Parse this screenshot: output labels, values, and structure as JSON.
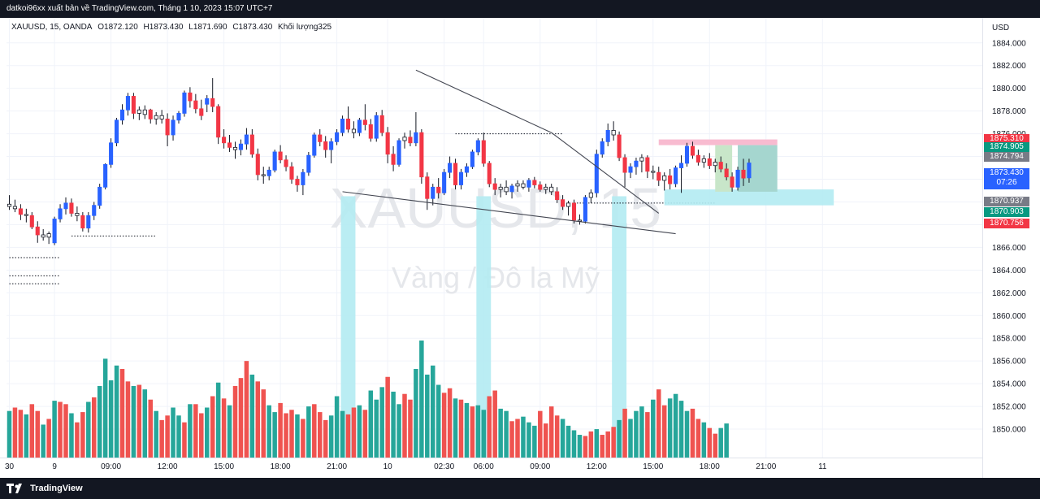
{
  "header": {
    "publisher_line": "datkoi96xx xuất bản về TradingView.com, Tháng 1 10, 2023 15:07 UTC+7"
  },
  "legend": {
    "symbol": "XAUUSD, 15, OANDA",
    "open": "O1872.120",
    "high": "H1873.430",
    "low": "L1871.690",
    "close": "C1873.430",
    "volume": "Khối lượng325"
  },
  "watermark": {
    "symbol": "XAUUSD, 15",
    "name": "Vàng / Đô la Mỹ"
  },
  "footer": {
    "brand": "TradingView"
  },
  "price_badges": [
    {
      "label": "1875.310",
      "color": "#f23645"
    },
    {
      "label": "1874.905",
      "color": "#089981"
    },
    {
      "label": "1874.794",
      "color": "#787b86"
    },
    {
      "label": "1873.430",
      "sub": "07:26",
      "color": "#2962ff"
    },
    {
      "label": "1870.937",
      "color": "#787b86"
    },
    {
      "label": "1870.903",
      "color": "#089981"
    },
    {
      "label": "1870.756",
      "color": "#f23645"
    }
  ],
  "chart_data": {
    "type": "candlestick",
    "currency": "USD",
    "y_ticks": [
      {
        "value": 1884,
        "label": "1884.000"
      },
      {
        "value": 1882,
        "label": "1882.000"
      },
      {
        "value": 1880,
        "label": "1880.000"
      },
      {
        "value": 1878,
        "label": "1878.000"
      },
      {
        "value": 1876,
        "label": "1876.000"
      },
      {
        "value": 1874,
        "label": "1874.000"
      },
      {
        "value": 1872,
        "label": "1872.000"
      },
      {
        "value": 1870,
        "label": "1870.000"
      },
      {
        "value": 1868,
        "label": "1868.000"
      },
      {
        "value": 1866,
        "label": "1866.000"
      },
      {
        "value": 1864,
        "label": "1864.000"
      },
      {
        "value": 1862,
        "label": "1862.000"
      },
      {
        "value": 1860,
        "label": "1860.000"
      },
      {
        "value": 1858,
        "label": "1858.000"
      },
      {
        "value": 1856,
        "label": "1856.000"
      },
      {
        "value": 1854,
        "label": "1854.000"
      },
      {
        "value": 1852,
        "label": "1852.000"
      },
      {
        "value": 1850,
        "label": "1850.000"
      }
    ],
    "ylim": [
      1847.5,
      1886.2
    ],
    "x_ticks": [
      {
        "bar": 0,
        "label": "30"
      },
      {
        "bar": 8,
        "label": "9"
      },
      {
        "bar": 18,
        "label": "09:00"
      },
      {
        "bar": 28,
        "label": "12:00"
      },
      {
        "bar": 38,
        "label": "15:00"
      },
      {
        "bar": 48,
        "label": "18:00"
      },
      {
        "bar": 58,
        "label": "21:00"
      },
      {
        "bar": 67,
        "label": "10"
      },
      {
        "bar": 77,
        "label": "02:30"
      },
      {
        "bar": 84,
        "label": "06:00"
      },
      {
        "bar": 94,
        "label": "09:00"
      },
      {
        "bar": 104,
        "label": "12:00"
      },
      {
        "bar": 114,
        "label": "15:00"
      },
      {
        "bar": 124,
        "label": "18:00"
      },
      {
        "bar": 134,
        "label": "21:00"
      },
      {
        "bar": 144,
        "label": "11"
      }
    ],
    "colors": {
      "up": "#2962ff",
      "down": "#f23645",
      "neutral": "#131722",
      "vol_up": "#26a69a",
      "vol_down": "#ef5350"
    },
    "candles": [
      [
        1869.8,
        1870.6,
        1869.3,
        1869.6
      ],
      [
        1869.6,
        1870.2,
        1869.1,
        1869.4
      ],
      [
        1869.4,
        1869.8,
        1868.4,
        1868.9
      ],
      [
        1868.9,
        1869.4,
        1868.2,
        1868.8
      ],
      [
        1868.8,
        1869.1,
        1867.6,
        1867.8
      ],
      [
        1867.8,
        1868.3,
        1866.4,
        1867.1
      ],
      [
        1867.1,
        1867.6,
        1866.6,
        1866.9
      ],
      [
        1866.9,
        1867.4,
        1866.3,
        1867.2
      ],
      [
        1866.4,
        1868.7,
        1866.2,
        1868.5
      ],
      [
        1868.5,
        1869.8,
        1868.2,
        1869.4
      ],
      [
        1869.4,
        1870.4,
        1868.9,
        1869.9
      ],
      [
        1869.9,
        1870.3,
        1868.7,
        1869.0
      ],
      [
        1869.0,
        1869.6,
        1868.3,
        1868.8
      ],
      [
        1868.8,
        1869.1,
        1867.4,
        1867.7
      ],
      [
        1867.7,
        1869.1,
        1867.3,
        1868.8
      ],
      [
        1868.8,
        1870.0,
        1868.4,
        1869.7
      ],
      [
        1869.7,
        1871.6,
        1869.4,
        1871.3
      ],
      [
        1871.3,
        1873.4,
        1871.1,
        1873.3
      ],
      [
        1873.3,
        1875.6,
        1873.0,
        1875.2
      ],
      [
        1875.2,
        1877.4,
        1874.9,
        1877.2
      ],
      [
        1877.2,
        1878.6,
        1876.8,
        1878.1
      ],
      [
        1878.1,
        1879.6,
        1877.6,
        1879.3
      ],
      [
        1879.3,
        1879.6,
        1877.3,
        1877.8
      ],
      [
        1877.8,
        1878.4,
        1877.2,
        1878.1
      ],
      [
        1878.1,
        1878.5,
        1877.3,
        1877.7
      ],
      [
        1878.1,
        1878.2,
        1876.9,
        1877.3
      ],
      [
        1877.3,
        1877.9,
        1876.8,
        1877.6
      ],
      [
        1877.6,
        1878.1,
        1876.9,
        1877.3
      ],
      [
        1877.3,
        1877.8,
        1874.9,
        1875.9
      ],
      [
        1875.9,
        1877.6,
        1875.4,
        1877.2
      ],
      [
        1877.2,
        1878.0,
        1876.9,
        1877.8
      ],
      [
        1877.8,
        1879.8,
        1877.5,
        1879.6
      ],
      [
        1879.6,
        1880.1,
        1878.3,
        1878.9
      ],
      [
        1878.9,
        1879.5,
        1877.8,
        1878.2
      ],
      [
        1878.2,
        1879.0,
        1877.2,
        1877.6
      ],
      [
        1878.6,
        1879.4,
        1877.9,
        1879.1
      ],
      [
        1879.1,
        1880.9,
        1877.9,
        1878.4
      ],
      [
        1878.4,
        1878.6,
        1875.1,
        1875.7
      ],
      [
        1875.7,
        1876.4,
        1874.7,
        1875.2
      ],
      [
        1875.2,
        1875.9,
        1874.4,
        1874.8
      ],
      [
        1874.8,
        1875.3,
        1873.8,
        1874.6
      ],
      [
        1874.6,
        1875.5,
        1874.1,
        1875.1
      ],
      [
        1875.1,
        1876.5,
        1874.6,
        1875.9
      ],
      [
        1875.9,
        1876.4,
        1873.9,
        1874.2
      ],
      [
        1874.2,
        1874.7,
        1871.9,
        1872.4
      ],
      [
        1872.4,
        1873.1,
        1871.6,
        1872.3
      ],
      [
        1872.3,
        1873.1,
        1871.9,
        1872.8
      ],
      [
        1872.8,
        1874.6,
        1872.6,
        1874.4
      ],
      [
        1874.4,
        1875.0,
        1873.4,
        1873.7
      ],
      [
        1873.7,
        1874.1,
        1872.7,
        1873.1
      ],
      [
        1873.1,
        1873.5,
        1871.6,
        1872.0
      ],
      [
        1872.0,
        1872.3,
        1870.9,
        1871.5
      ],
      [
        1871.5,
        1872.9,
        1870.6,
        1872.6
      ],
      [
        1872.6,
        1874.4,
        1872.3,
        1874.1
      ],
      [
        1874.1,
        1876.1,
        1873.9,
        1875.9
      ],
      [
        1875.9,
        1876.4,
        1874.9,
        1875.3
      ],
      [
        1875.3,
        1875.8,
        1873.9,
        1874.6
      ],
      [
        1874.6,
        1875.6,
        1873.4,
        1875.3
      ],
      [
        1875.3,
        1876.4,
        1875.0,
        1876.1
      ],
      [
        1876.1,
        1877.6,
        1875.8,
        1877.3
      ],
      [
        1877.3,
        1878.4,
        1876.1,
        1876.4
      ],
      [
        1876.4,
        1877.1,
        1875.6,
        1876.1
      ],
      [
        1876.1,
        1877.4,
        1875.8,
        1877.2
      ],
      [
        1877.2,
        1878.6,
        1876.3,
        1876.8
      ],
      [
        1876.8,
        1877.3,
        1875.3,
        1875.6
      ],
      [
        1875.6,
        1877.9,
        1875.3,
        1877.6
      ],
      [
        1877.6,
        1878.1,
        1875.8,
        1876.1
      ],
      [
        1876.1,
        1876.6,
        1873.4,
        1874.2
      ],
      [
        1874.2,
        1874.9,
        1872.7,
        1873.3
      ],
      [
        1873.3,
        1875.6,
        1873.1,
        1875.4
      ],
      [
        1875.4,
        1876.1,
        1874.7,
        1875.7
      ],
      [
        1875.7,
        1876.3,
        1874.9,
        1875.2
      ],
      [
        1875.2,
        1877.9,
        1874.9,
        1876.1
      ],
      [
        1876.1,
        1876.4,
        1871.6,
        1872.2
      ],
      [
        1872.2,
        1872.6,
        1869.3,
        1870.3
      ],
      [
        1870.3,
        1871.6,
        1869.7,
        1871.3
      ],
      [
        1871.3,
        1872.1,
        1870.3,
        1870.8
      ],
      [
        1870.8,
        1872.9,
        1870.6,
        1872.6
      ],
      [
        1872.6,
        1874.0,
        1872.1,
        1873.4
      ],
      [
        1873.4,
        1873.8,
        1871.1,
        1871.5
      ],
      [
        1871.5,
        1872.9,
        1871.1,
        1872.6
      ],
      [
        1872.6,
        1873.4,
        1872.2,
        1873.1
      ],
      [
        1873.1,
        1874.6,
        1872.9,
        1874.4
      ],
      [
        1874.4,
        1875.6,
        1874.1,
        1875.4
      ],
      [
        1875.4,
        1876.1,
        1873.1,
        1873.4
      ],
      [
        1873.4,
        1873.6,
        1871.3,
        1871.6
      ],
      [
        1871.6,
        1872.1,
        1870.6,
        1871.1
      ],
      [
        1871.1,
        1871.6,
        1870.4,
        1871.3
      ],
      [
        1871.3,
        1871.9,
        1870.6,
        1870.9
      ],
      [
        1870.9,
        1871.6,
        1870.3,
        1871.4
      ],
      [
        1871.4,
        1871.9,
        1870.9,
        1871.6
      ],
      [
        1871.6,
        1871.9,
        1871.1,
        1871.3
      ],
      [
        1871.3,
        1872.1,
        1870.9,
        1871.9
      ],
      [
        1871.9,
        1872.2,
        1871.2,
        1871.5
      ],
      [
        1871.5,
        1871.8,
        1870.9,
        1871.1
      ],
      [
        1871.1,
        1871.6,
        1870.7,
        1871.3
      ],
      [
        1871.3,
        1871.6,
        1870.6,
        1870.9
      ],
      [
        1870.9,
        1871.3,
        1869.9,
        1870.2
      ],
      [
        1870.2,
        1870.6,
        1869.3,
        1869.6
      ],
      [
        1869.6,
        1870.1,
        1868.8,
        1869.9
      ],
      [
        1869.9,
        1870.2,
        1868.1,
        1868.4
      ],
      [
        1868.4,
        1868.9,
        1868.0,
        1868.3
      ],
      [
        1868.3,
        1870.6,
        1868.1,
        1870.4
      ],
      [
        1870.4,
        1871.1,
        1869.9,
        1870.8
      ],
      [
        1870.8,
        1874.6,
        1870.4,
        1874.2
      ],
      [
        1874.2,
        1875.6,
        1873.9,
        1875.3
      ],
      [
        1875.3,
        1876.9,
        1874.9,
        1876.3
      ],
      [
        1876.3,
        1877.1,
        1875.4,
        1875.9
      ],
      [
        1875.9,
        1876.2,
        1873.6,
        1873.9
      ],
      [
        1873.9,
        1874.2,
        1871.3,
        1872.6
      ],
      [
        1872.6,
        1873.4,
        1872.1,
        1873.1
      ],
      [
        1873.1,
        1873.9,
        1872.4,
        1873.6
      ],
      [
        1873.6,
        1874.2,
        1872.6,
        1873.9
      ],
      [
        1873.9,
        1874.1,
        1872.1,
        1872.7
      ],
      [
        1872.7,
        1873.2,
        1872.0,
        1872.6
      ],
      [
        1872.6,
        1873.1,
        1871.4,
        1871.9
      ],
      [
        1871.9,
        1872.6,
        1871.0,
        1872.3
      ],
      [
        1872.3,
        1872.9,
        1871.1,
        1871.6
      ],
      [
        1871.6,
        1873.2,
        1871.3,
        1873.0
      ],
      [
        1873.0,
        1874.1,
        1870.8,
        1873.4
      ],
      [
        1873.4,
        1875.2,
        1873.1,
        1874.9
      ],
      [
        1874.9,
        1875.3,
        1873.8,
        1874.1
      ],
      [
        1874.1,
        1874.6,
        1873.2,
        1873.5
      ],
      [
        1873.5,
        1874.1,
        1873.0,
        1873.8
      ],
      [
        1873.8,
        1874.3,
        1872.9,
        1873.2
      ],
      [
        1873.2,
        1873.8,
        1872.6,
        1873.5
      ],
      [
        1873.5,
        1874.0,
        1872.6,
        1872.9
      ],
      [
        1872.9,
        1873.4,
        1871.9,
        1872.2
      ],
      [
        1872.2,
        1872.6,
        1870.9,
        1871.3
      ],
      [
        1871.3,
        1873.1,
        1871.0,
        1872.8
      ],
      [
        1872.8,
        1873.8,
        1871.4,
        1872.1
      ],
      [
        1872.12,
        1873.8,
        1871.69,
        1873.43
      ]
    ],
    "volumes": [
      [
        1851.6,
        1
      ],
      [
        1851.9,
        0
      ],
      [
        1851.7,
        0
      ],
      [
        1851.3,
        1
      ],
      [
        1852.2,
        0
      ],
      [
        1851.6,
        0
      ],
      [
        1850.4,
        1
      ],
      [
        1850.9,
        0
      ],
      [
        1852.5,
        1
      ],
      [
        1852.4,
        0
      ],
      [
        1852.2,
        0
      ],
      [
        1851.4,
        1
      ],
      [
        1850.6,
        0
      ],
      [
        1851.5,
        0
      ],
      [
        1852.4,
        1
      ],
      [
        1852.8,
        0
      ],
      [
        1853.8,
        1
      ],
      [
        1856.2,
        1
      ],
      [
        1854.3,
        1
      ],
      [
        1855.6,
        1
      ],
      [
        1855.3,
        0
      ],
      [
        1854.2,
        0
      ],
      [
        1853.8,
        1
      ],
      [
        1853.9,
        0
      ],
      [
        1853.5,
        1
      ],
      [
        1852.6,
        0
      ],
      [
        1851.6,
        1
      ],
      [
        1850.8,
        0
      ],
      [
        1851.2,
        0
      ],
      [
        1851.9,
        1
      ],
      [
        1851.2,
        1
      ],
      [
        1850.6,
        0
      ],
      [
        1852.2,
        1
      ],
      [
        1852.2,
        0
      ],
      [
        1851.4,
        0
      ],
      [
        1851.9,
        1
      ],
      [
        1852.9,
        0
      ],
      [
        1854.1,
        1
      ],
      [
        1852.7,
        0
      ],
      [
        1852.1,
        1
      ],
      [
        1853.8,
        0
      ],
      [
        1854.5,
        0
      ],
      [
        1856.0,
        0
      ],
      [
        1854.8,
        1
      ],
      [
        1854.2,
        0
      ],
      [
        1853.5,
        0
      ],
      [
        1852.1,
        1
      ],
      [
        1851.5,
        1
      ],
      [
        1852.3,
        0
      ],
      [
        1851.4,
        0
      ],
      [
        1851.7,
        0
      ],
      [
        1851.3,
        1
      ],
      [
        1850.9,
        0
      ],
      [
        1852.0,
        1
      ],
      [
        1852.2,
        0
      ],
      [
        1851.5,
        0
      ],
      [
        1850.8,
        0
      ],
      [
        1851.2,
        1
      ],
      [
        1852.9,
        1
      ],
      [
        1851.6,
        1
      ],
      [
        1851.3,
        0
      ],
      [
        1851.9,
        0
      ],
      [
        1852.1,
        1
      ],
      [
        1851.7,
        0
      ],
      [
        1853.4,
        1
      ],
      [
        1852.6,
        1
      ],
      [
        1853.7,
        1
      ],
      [
        1854.6,
        0
      ],
      [
        1853.3,
        1
      ],
      [
        1852.2,
        1
      ],
      [
        1853.1,
        0
      ],
      [
        1852.6,
        0
      ],
      [
        1855.3,
        1
      ],
      [
        1857.8,
        1
      ],
      [
        1854.8,
        1
      ],
      [
        1855.6,
        1
      ],
      [
        1853.9,
        1
      ],
      [
        1853.2,
        0
      ],
      [
        1853.6,
        0
      ],
      [
        1852.7,
        1
      ],
      [
        1852.6,
        0
      ],
      [
        1852.3,
        1
      ],
      [
        1852.0,
        0
      ],
      [
        1852.1,
        1
      ],
      [
        1851.7,
        1
      ],
      [
        1852.9,
        0
      ],
      [
        1853.4,
        0
      ],
      [
        1851.8,
        1
      ],
      [
        1851.6,
        1
      ],
      [
        1850.7,
        0
      ],
      [
        1850.9,
        0
      ],
      [
        1851.1,
        1
      ],
      [
        1850.6,
        1
      ],
      [
        1850.3,
        1
      ],
      [
        1851.6,
        0
      ],
      [
        1850.5,
        0
      ],
      [
        1852.0,
        0
      ],
      [
        1851.2,
        0
      ],
      [
        1850.9,
        1
      ],
      [
        1850.3,
        1
      ],
      [
        1849.9,
        1
      ],
      [
        1849.5,
        1
      ],
      [
        1849.4,
        0
      ],
      [
        1849.8,
        0
      ],
      [
        1850.0,
        1
      ],
      [
        1849.5,
        0
      ],
      [
        1849.8,
        0
      ],
      [
        1850.2,
        0
      ],
      [
        1850.8,
        1
      ],
      [
        1851.8,
        0
      ],
      [
        1850.9,
        1
      ],
      [
        1851.6,
        1
      ],
      [
        1852.0,
        1
      ],
      [
        1851.5,
        0
      ],
      [
        1852.6,
        1
      ],
      [
        1853.5,
        0
      ],
      [
        1852.1,
        0
      ],
      [
        1852.7,
        1
      ],
      [
        1853.1,
        1
      ],
      [
        1852.5,
        1
      ],
      [
        1851.6,
        1
      ],
      [
        1851.8,
        0
      ],
      [
        1850.9,
        0
      ],
      [
        1850.6,
        1
      ],
      [
        1850.1,
        0
      ],
      [
        1849.6,
        0
      ],
      [
        1850.1,
        1
      ],
      [
        1850.5,
        1
      ]
    ]
  }
}
